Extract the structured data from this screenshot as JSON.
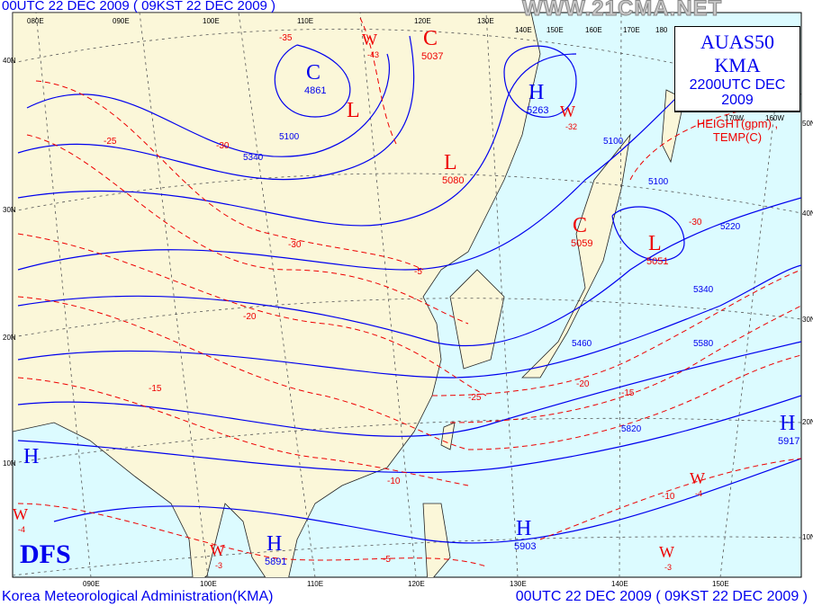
{
  "header": {
    "top_left": "00UTC 22 DEC 2009 ( 09KST 22 DEC 2009 )",
    "watermark": "WWW.21CMA.NET"
  },
  "legend": {
    "title": "AUAS50  KMA",
    "valid": "2200UTC DEC 2009",
    "fields": "HEIGHT(gpm) , TEMP(C)"
  },
  "footer": {
    "left": "Korea Meteorological Administration(KMA)",
    "right": "00UTC 22 DEC 2009 ( 09KST 22 DEC 2009 )"
  },
  "logo": "DFS",
  "colors": {
    "ocean": "#dcfbff",
    "land": "#fbf7d9",
    "height": "#0000ee",
    "temp": "#ee0000",
    "grid": "#555555"
  },
  "lon_labels_bottom": [
    "090E",
    "100E",
    "110E",
    "120E",
    "130E",
    "140E",
    "150E"
  ],
  "lon_labels_top": [
    "080E",
    "090E",
    "100E",
    "110E",
    "120E",
    "130E",
    "140E",
    "150E",
    "160E",
    "170E",
    "180",
    "170W",
    "160W"
  ],
  "lat_labels_left": [
    "40N",
    "30N",
    "20N",
    "10N"
  ],
  "lat_labels_right": [
    "50N",
    "40N",
    "30N",
    "20N",
    "10N"
  ],
  "centers": [
    {
      "sym": "C",
      "type": "height",
      "value": "4861"
    },
    {
      "sym": "L",
      "type": "temp",
      "value": ""
    },
    {
      "sym": "C",
      "type": "temp",
      "value": "5037"
    },
    {
      "sym": "H",
      "type": "height",
      "value": "5263"
    },
    {
      "sym": "L",
      "type": "temp",
      "value": "5080"
    },
    {
      "sym": "C",
      "type": "temp",
      "value": "5059"
    },
    {
      "sym": "L",
      "type": "temp",
      "value": "5051"
    },
    {
      "sym": "H",
      "type": "height",
      "value": "5917"
    },
    {
      "sym": "H",
      "type": "height",
      "value": ""
    },
    {
      "sym": "H",
      "type": "height",
      "value": "5903"
    },
    {
      "sym": "H",
      "type": "height",
      "value": "5891"
    },
    {
      "sym": "W",
      "type": "temp",
      "value": "-43"
    },
    {
      "sym": "W",
      "type": "temp",
      "value": "-32"
    },
    {
      "sym": "W",
      "type": "temp",
      "value": "-4"
    },
    {
      "sym": "W",
      "type": "temp",
      "value": "-3"
    },
    {
      "sym": "W",
      "type": "temp",
      "value": "-3"
    },
    {
      "sym": "W",
      "type": "temp",
      "value": "-4"
    }
  ],
  "height_contour_labels": [
    "5100",
    "5340",
    "5460",
    "5580",
    "5820",
    "5220",
    "5340",
    "5100",
    "5100"
  ],
  "temp_contour_labels": [
    "-30",
    "-25",
    "-20",
    "-15",
    "-10",
    "-5",
    "-25",
    "-20",
    "-15",
    "-10",
    "-5",
    "-30",
    "-35",
    "-30"
  ]
}
